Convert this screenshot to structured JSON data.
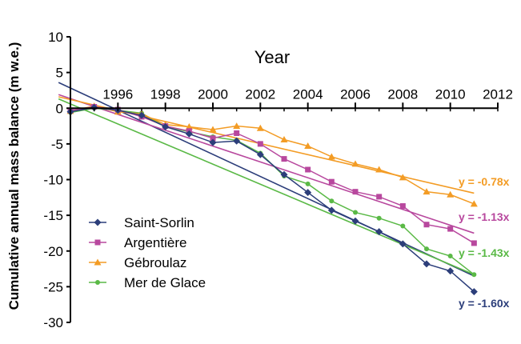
{
  "chart_data": {
    "type": "line",
    "xlabel": "Year",
    "ylabel": "Cumulative annual mass balance (m w.e.)",
    "xlim": [
      1994,
      2012
    ],
    "ylim": [
      -30,
      10
    ],
    "x_ticks": [
      1996,
      1998,
      2000,
      2002,
      2004,
      2006,
      2008,
      2010,
      2012
    ],
    "y_ticks": [
      10,
      5,
      0,
      -5,
      -10,
      -15,
      -20,
      -25,
      -30
    ],
    "legend_position": "lower-left",
    "series": [
      {
        "name": "Saint-Sorlin",
        "color": "#2c3e7a",
        "marker": "diamond",
        "x": [
          1994,
          1995,
          1996,
          1997,
          1998,
          1999,
          2000,
          2001,
          2002,
          2003,
          2004,
          2005,
          2006,
          2007,
          2008,
          2009,
          2010,
          2011
        ],
        "y": [
          -0.5,
          0.1,
          -0.3,
          -1.0,
          -2.6,
          -3.6,
          -4.8,
          -4.6,
          -6.5,
          -9.3,
          -11.8,
          -14.3,
          -15.8,
          -17.3,
          -19.0,
          -21.8,
          -22.8,
          -25.7
        ],
        "trend": {
          "label": "y = -1.60x",
          "x": [
            1993.5,
            2011
          ],
          "y": [
            3.6,
            -23.5
          ]
        }
      },
      {
        "name": "Argentière",
        "color": "#b8489e",
        "marker": "square",
        "x": [
          1994,
          1995,
          1996,
          1997,
          1998,
          1999,
          2000,
          2001,
          2002,
          2003,
          2004,
          2005,
          2006,
          2007,
          2008,
          2009,
          2010,
          2011
        ],
        "y": [
          -0.3,
          0.2,
          -0.2,
          -1.2,
          -2.5,
          -3.2,
          -4.2,
          -3.5,
          -5.0,
          -7.1,
          -8.6,
          -10.3,
          -11.7,
          -12.4,
          -13.7,
          -16.3,
          -16.9,
          -18.9
        ],
        "trend": {
          "label": "y = -1.13x",
          "x": [
            1993.5,
            2011
          ],
          "y": [
            1.9,
            -17.5
          ]
        }
      },
      {
        "name": "Gébroulaz",
        "color": "#f39c25",
        "marker": "triangle",
        "x": [
          1994,
          1995,
          1996,
          1997,
          1998,
          1999,
          2000,
          2001,
          2002,
          2003,
          2004,
          2005,
          2006,
          2007,
          2008,
          2009,
          2010,
          2011
        ],
        "y": [
          -0.4,
          0.3,
          -0.5,
          -0.8,
          -2.3,
          -2.6,
          -3.0,
          -2.5,
          -2.8,
          -4.4,
          -5.3,
          -6.8,
          -7.8,
          -8.6,
          -9.7,
          -11.7,
          -12.1,
          -13.4
        ],
        "trend": {
          "label": "y = -0.78x",
          "x": [
            1993.5,
            2011
          ],
          "y": [
            1.6,
            -11.9
          ]
        }
      },
      {
        "name": "Mer de Glace",
        "color": "#5ab946",
        "marker": "circle",
        "x": [
          1994,
          1995,
          1996,
          1997,
          1998,
          1999,
          2000,
          2001,
          2002,
          2003,
          2004,
          2005,
          2006,
          2007,
          2008,
          2009,
          2010,
          2011
        ],
        "y": [
          -0.6,
          0.0,
          -0.3,
          -0.7,
          -2.6,
          -3.3,
          -4.0,
          -4.5,
          -6.3,
          -9.5,
          -10.6,
          -13.0,
          -14.6,
          -15.4,
          -16.5,
          -19.7,
          -20.7,
          -23.3
        ],
        "trend": {
          "label": "y = -1.43x",
          "x": [
            1993.5,
            2011
          ],
          "y": [
            1.3,
            -23.3
          ]
        }
      }
    ]
  }
}
